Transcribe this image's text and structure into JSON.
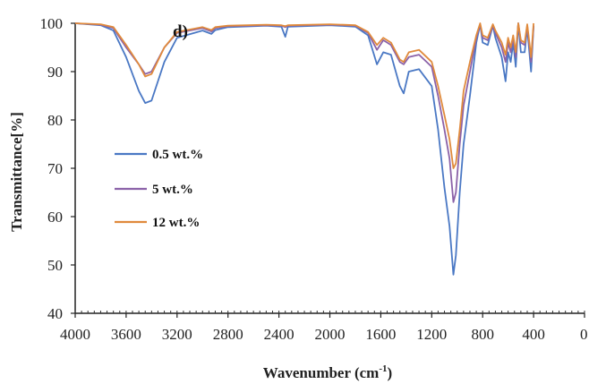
{
  "chart_data": {
    "type": "line",
    "title": "",
    "panel_label": "d)",
    "xlabel": "Wavenumber (cm",
    "xlabel_sup": "-1",
    "xlabel_close": ")",
    "ylabel": "Transmittance[%]",
    "xlim": [
      4000,
      0
    ],
    "ylim": [
      40,
      100
    ],
    "x_ticks": [
      4000,
      3600,
      3200,
      2800,
      2400,
      2000,
      1600,
      1200,
      800,
      400,
      0
    ],
    "y_ticks": [
      40,
      50,
      60,
      70,
      80,
      90,
      100
    ],
    "grid": false,
    "legend_position": "left",
    "series": [
      {
        "name": "0.5 wt.%",
        "color": "#4a78c4",
        "points": [
          [
            4000,
            100
          ],
          [
            3800,
            99.6
          ],
          [
            3700,
            98.5
          ],
          [
            3600,
            93
          ],
          [
            3500,
            86
          ],
          [
            3450,
            83.5
          ],
          [
            3400,
            84
          ],
          [
            3300,
            92
          ],
          [
            3200,
            97
          ],
          [
            3000,
            98.5
          ],
          [
            2930,
            97.8
          ],
          [
            2900,
            98.6
          ],
          [
            2800,
            99.2
          ],
          [
            2500,
            99.5
          ],
          [
            2380,
            99.3
          ],
          [
            2350,
            97.2
          ],
          [
            2330,
            99.3
          ],
          [
            2000,
            99.6
          ],
          [
            1800,
            99.3
          ],
          [
            1700,
            97.5
          ],
          [
            1630,
            91.5
          ],
          [
            1580,
            94
          ],
          [
            1520,
            93.5
          ],
          [
            1450,
            87
          ],
          [
            1420,
            85.5
          ],
          [
            1380,
            90
          ],
          [
            1300,
            90.5
          ],
          [
            1200,
            87
          ],
          [
            1150,
            78
          ],
          [
            1100,
            66
          ],
          [
            1060,
            58
          ],
          [
            1030,
            48
          ],
          [
            1010,
            52
          ],
          [
            980,
            65
          ],
          [
            950,
            75
          ],
          [
            900,
            85
          ],
          [
            850,
            96
          ],
          [
            820,
            99.8
          ],
          [
            800,
            96
          ],
          [
            760,
            95.5
          ],
          [
            720,
            99.5
          ],
          [
            700,
            97
          ],
          [
            650,
            93
          ],
          [
            620,
            88
          ],
          [
            600,
            94
          ],
          [
            580,
            92
          ],
          [
            560,
            96
          ],
          [
            540,
            91
          ],
          [
            520,
            100
          ],
          [
            500,
            94
          ],
          [
            470,
            94
          ],
          [
            450,
            99
          ],
          [
            420,
            90
          ],
          [
            400,
            99.5
          ]
        ]
      },
      {
        "name": "5 wt.%",
        "color": "#8b62a8",
        "points": [
          [
            4000,
            100
          ],
          [
            3800,
            99.7
          ],
          [
            3700,
            99
          ],
          [
            3600,
            95
          ],
          [
            3500,
            91.5
          ],
          [
            3450,
            89.5
          ],
          [
            3400,
            90
          ],
          [
            3300,
            95
          ],
          [
            3200,
            98
          ],
          [
            3000,
            99
          ],
          [
            2930,
            98.3
          ],
          [
            2900,
            99
          ],
          [
            2800,
            99.4
          ],
          [
            2500,
            99.6
          ],
          [
            2380,
            99.5
          ],
          [
            2350,
            99.2
          ],
          [
            2330,
            99.5
          ],
          [
            2000,
            99.7
          ],
          [
            1800,
            99.5
          ],
          [
            1700,
            98
          ],
          [
            1630,
            94.5
          ],
          [
            1580,
            96.5
          ],
          [
            1520,
            95.5
          ],
          [
            1450,
            92
          ],
          [
            1420,
            91.5
          ],
          [
            1380,
            93
          ],
          [
            1300,
            93.5
          ],
          [
            1200,
            91
          ],
          [
            1150,
            85
          ],
          [
            1100,
            78
          ],
          [
            1060,
            72
          ],
          [
            1030,
            63
          ],
          [
            1010,
            65
          ],
          [
            980,
            75
          ],
          [
            950,
            83
          ],
          [
            900,
            90
          ],
          [
            850,
            97
          ],
          [
            820,
            99.8
          ],
          [
            800,
            97
          ],
          [
            760,
            96.5
          ],
          [
            720,
            99.5
          ],
          [
            700,
            98
          ],
          [
            650,
            95
          ],
          [
            620,
            92
          ],
          [
            600,
            96
          ],
          [
            580,
            94
          ],
          [
            560,
            97
          ],
          [
            540,
            93
          ],
          [
            520,
            100
          ],
          [
            500,
            96
          ],
          [
            470,
            95.5
          ],
          [
            450,
            99.5
          ],
          [
            420,
            92
          ],
          [
            400,
            99.5
          ]
        ]
      },
      {
        "name": "12 wt.%",
        "color": "#e08a3c",
        "points": [
          [
            4000,
            100
          ],
          [
            3800,
            99.8
          ],
          [
            3700,
            99.2
          ],
          [
            3600,
            95.5
          ],
          [
            3500,
            91.5
          ],
          [
            3450,
            89
          ],
          [
            3400,
            89.5
          ],
          [
            3300,
            95
          ],
          [
            3200,
            98.2
          ],
          [
            3000,
            99.2
          ],
          [
            2930,
            98.6
          ],
          [
            2900,
            99.2
          ],
          [
            2800,
            99.5
          ],
          [
            2500,
            99.7
          ],
          [
            2380,
            99.6
          ],
          [
            2350,
            99.4
          ],
          [
            2330,
            99.6
          ],
          [
            2000,
            99.8
          ],
          [
            1800,
            99.6
          ],
          [
            1700,
            98.2
          ],
          [
            1630,
            95.5
          ],
          [
            1580,
            97
          ],
          [
            1520,
            96
          ],
          [
            1450,
            92.5
          ],
          [
            1420,
            92
          ],
          [
            1380,
            94
          ],
          [
            1300,
            94.5
          ],
          [
            1200,
            92
          ],
          [
            1150,
            87
          ],
          [
            1100,
            81
          ],
          [
            1060,
            76
          ],
          [
            1030,
            70
          ],
          [
            1010,
            71
          ],
          [
            980,
            78
          ],
          [
            950,
            86
          ],
          [
            900,
            92
          ],
          [
            850,
            97.5
          ],
          [
            820,
            100
          ],
          [
            800,
            97.5
          ],
          [
            760,
            97
          ],
          [
            720,
            99.8
          ],
          [
            700,
            98.5
          ],
          [
            650,
            96
          ],
          [
            620,
            93.5
          ],
          [
            600,
            97
          ],
          [
            580,
            95
          ],
          [
            560,
            97.5
          ],
          [
            540,
            94
          ],
          [
            520,
            100
          ],
          [
            500,
            96.5
          ],
          [
            470,
            96
          ],
          [
            450,
            99.8
          ],
          [
            420,
            93
          ],
          [
            400,
            100
          ]
        ]
      }
    ]
  }
}
